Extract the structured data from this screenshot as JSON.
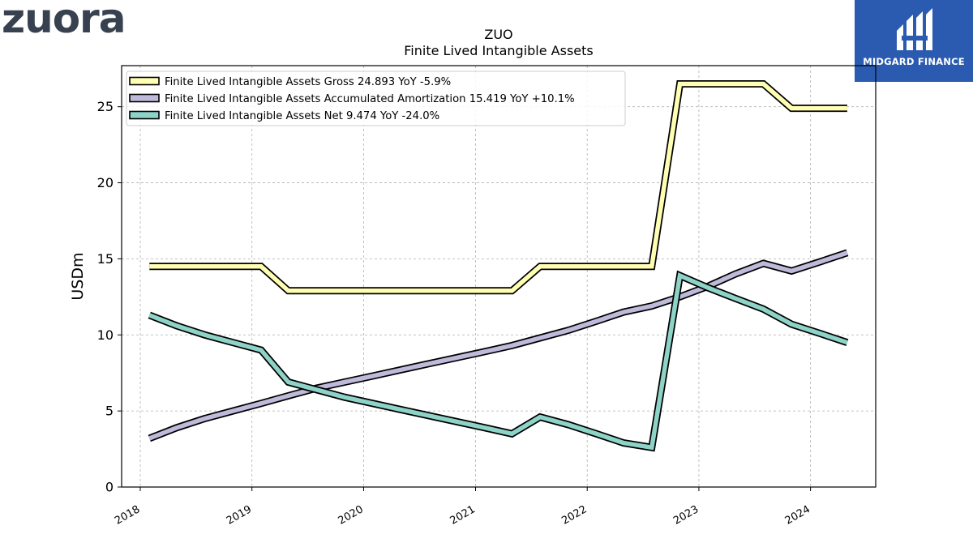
{
  "brand": {
    "name": "zuora"
  },
  "partner": {
    "name": "MIDGARD FINANCE"
  },
  "chart_data": {
    "type": "line",
    "title": "ZUO",
    "subtitle": "Finite Lived Intangible Assets",
    "ylabel": "USDm",
    "xlabel": "",
    "ylim": [
      0,
      27.7
    ],
    "yticks": [
      0,
      5,
      10,
      15,
      20,
      25
    ],
    "xlim": [
      "2017-11-01",
      "2024-08-01"
    ],
    "xticks": [
      "2018",
      "2019",
      "2020",
      "2021",
      "2022",
      "2023",
      "2024"
    ],
    "grid": true,
    "legend_position": "top-left",
    "series": [
      {
        "name": "Finite Lived Intangible Assets Gross",
        "legend_label": "Finite Lived Intangible Assets Gross  24.893 YoY -5.9%",
        "color": "#ffffb3",
        "x": [
          "2018-01-31",
          "2018-04-30",
          "2018-07-31",
          "2018-10-31",
          "2019-01-31",
          "2019-04-30",
          "2019-07-31",
          "2019-10-31",
          "2020-01-31",
          "2020-04-30",
          "2020-07-31",
          "2020-10-31",
          "2021-01-31",
          "2021-04-30",
          "2021-07-31",
          "2021-10-31",
          "2022-01-31",
          "2022-04-30",
          "2022-07-31",
          "2022-10-31",
          "2023-01-31",
          "2023-04-30",
          "2023-07-31",
          "2023-10-31",
          "2024-01-31",
          "2024-04-30"
        ],
        "y": [
          14.5,
          14.5,
          14.5,
          14.5,
          14.5,
          12.9,
          12.9,
          12.9,
          12.9,
          12.9,
          12.9,
          12.9,
          12.9,
          12.9,
          14.5,
          14.5,
          14.5,
          14.5,
          14.5,
          26.5,
          26.5,
          26.5,
          26.5,
          24.9,
          24.9,
          24.9
        ]
      },
      {
        "name": "Finite Lived Intangible Assets Accumulated Amortization",
        "legend_label": "Finite Lived Intangible Assets Accumulated Amortization  15.419 YoY +10.1%",
        "color": "#bebada",
        "x": [
          "2018-01-31",
          "2018-04-30",
          "2018-07-31",
          "2018-10-31",
          "2019-01-31",
          "2019-04-30",
          "2019-07-31",
          "2019-10-31",
          "2020-01-31",
          "2020-04-30",
          "2020-07-31",
          "2020-10-31",
          "2021-01-31",
          "2021-04-30",
          "2021-07-31",
          "2021-10-31",
          "2022-01-31",
          "2022-04-30",
          "2022-07-31",
          "2022-10-31",
          "2023-01-31",
          "2023-04-30",
          "2023-07-31",
          "2023-10-31",
          "2024-01-31",
          "2024-04-30"
        ],
        "y": [
          3.2,
          3.9,
          4.5,
          5.0,
          5.5,
          6.0,
          6.5,
          6.9,
          7.3,
          7.7,
          8.1,
          8.5,
          8.9,
          9.3,
          9.8,
          10.3,
          10.9,
          11.5,
          11.9,
          12.5,
          13.2,
          14.0,
          14.7,
          14.2,
          14.8,
          15.4
        ]
      },
      {
        "name": "Finite Lived Intangible Assets Net",
        "legend_label": "Finite Lived Intangible Assets Net  9.474 YoY -24.0%",
        "color": "#8dd3c7",
        "x": [
          "2018-01-31",
          "2018-04-30",
          "2018-07-31",
          "2018-10-31",
          "2019-01-31",
          "2019-04-30",
          "2019-07-31",
          "2019-10-31",
          "2020-01-31",
          "2020-04-30",
          "2020-07-31",
          "2020-10-31",
          "2021-01-31",
          "2021-04-30",
          "2021-07-31",
          "2021-10-31",
          "2022-01-31",
          "2022-04-30",
          "2022-07-31",
          "2022-10-31",
          "2023-01-31",
          "2023-04-30",
          "2023-07-31",
          "2023-10-31",
          "2024-01-31",
          "2024-04-30"
        ],
        "y": [
          11.3,
          10.6,
          10.0,
          9.5,
          9.0,
          6.9,
          6.4,
          5.9,
          5.5,
          5.1,
          4.7,
          4.3,
          3.9,
          3.5,
          4.6,
          4.1,
          3.5,
          2.9,
          2.6,
          13.9,
          13.1,
          12.4,
          11.7,
          10.7,
          10.1,
          9.5
        ]
      }
    ]
  }
}
